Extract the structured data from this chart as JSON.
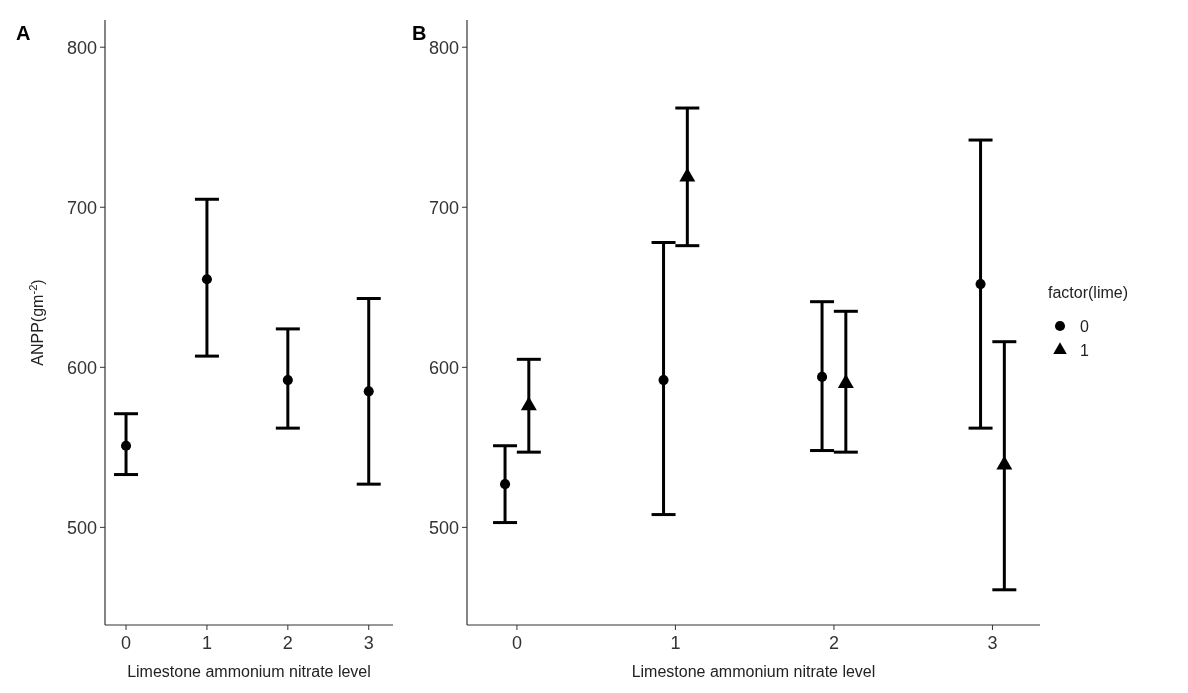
{
  "chart_data": [
    {
      "type": "scatter",
      "title": "A",
      "xlabel": "Limestone ammonium nitrate level",
      "ylabel": "ANPP(gm$^{-2}$)",
      "xlim": [
        -0.26,
        3.3
      ],
      "xticks": [
        0,
        1,
        2,
        3
      ],
      "ylim": [
        439,
        817
      ],
      "yticks": [
        500,
        600,
        700,
        800
      ],
      "grid": false,
      "legend": false,
      "marker": "circle",
      "series": [
        {
          "color": "#000000",
          "x": [
            0,
            1,
            2,
            3
          ],
          "values": [
            551,
            655,
            592,
            585
          ],
          "errors": [
            [
              533,
              571
            ],
            [
              607,
              705
            ],
            [
              562,
              624
            ],
            [
              527,
              643
            ]
          ]
        }
      ]
    },
    {
      "type": "scatter",
      "title": "B",
      "xlabel": "Limestone ammonium nitrate level",
      "legend_title": "factor(lime)",
      "xlim": [
        -0.315,
        3.3
      ],
      "xticks": [
        0,
        1,
        2,
        3
      ],
      "ylim": [
        439,
        817
      ],
      "yticks": [
        500,
        600,
        700,
        800
      ],
      "grid": false,
      "legend": "right",
      "series": [
        {
          "name": "0",
          "color": "#000000",
          "marker": "circle",
          "x": [
            -0.075,
            0.925,
            1.925,
            2.925
          ],
          "values": [
            527,
            592,
            594,
            652
          ],
          "errors": [
            [
              503,
              551
            ],
            [
              508,
              678
            ],
            [
              548,
              641
            ],
            [
              562,
              742
            ]
          ]
        },
        {
          "name": "1",
          "color": "#000000",
          "marker": "triangle",
          "x": [
            0.075,
            1.075,
            2.075,
            3.075
          ],
          "values": [
            576,
            719,
            590,
            539
          ],
          "errors": [
            [
              547,
              605
            ],
            [
              676,
              762
            ],
            [
              547,
              635
            ],
            [
              461,
              616
            ]
          ]
        }
      ]
    }
  ]
}
